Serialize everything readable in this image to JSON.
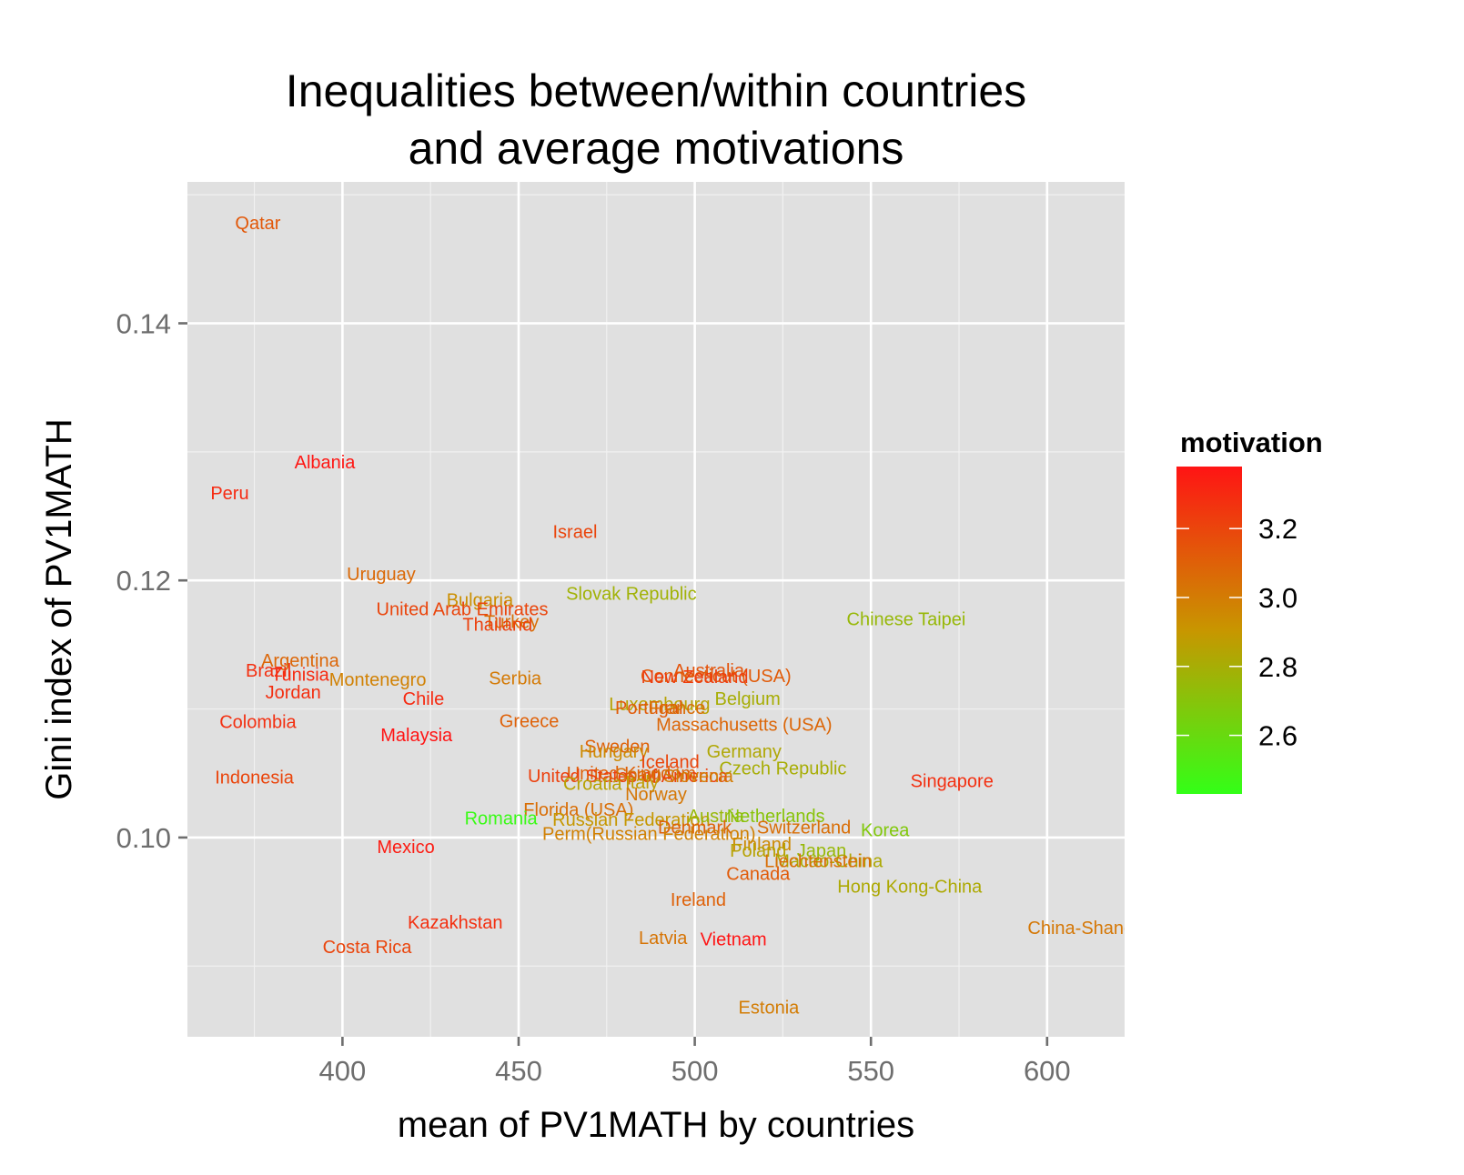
{
  "chart_data": {
    "type": "scatter",
    "title": [
      "Inequalities between/within countries",
      "and average motivations"
    ],
    "xlabel": "mean of PV1MATH by countries",
    "ylabel": "Gini index of PV1MATH",
    "xlim": [
      356,
      622
    ],
    "ylim": [
      0.0845,
      0.151
    ],
    "x_ticks": [
      400,
      450,
      500,
      550,
      600
    ],
    "x_tick_labels": [
      "400",
      "450",
      "500",
      "550",
      "600"
    ],
    "y_ticks": [
      0.1,
      0.12,
      0.14
    ],
    "y_tick_labels": [
      "0.10",
      "0.12",
      "0.14"
    ],
    "grid": true,
    "legend": {
      "title": "motivation",
      "placement": "right",
      "range": [
        2.43,
        3.38
      ],
      "ticks": [
        3.2,
        3.0,
        2.8,
        2.6
      ],
      "tick_labels": [
        "3.2",
        "3.0",
        "2.8",
        "2.6"
      ],
      "low_color": "#33ff17",
      "high_color": "#ff1414"
    },
    "points": [
      {
        "label": "Qatar",
        "x": 376,
        "y": 0.1478,
        "motivation": 3.13
      },
      {
        "label": "Albania",
        "x": 395,
        "y": 0.1292,
        "motivation": 3.37
      },
      {
        "label": "Peru",
        "x": 368,
        "y": 0.1268,
        "motivation": 3.3
      },
      {
        "label": "Israel",
        "x": 466,
        "y": 0.1238,
        "motivation": 3.2
      },
      {
        "label": "Uruguay",
        "x": 411,
        "y": 0.1205,
        "motivation": 3.07
      },
      {
        "label": "Slovak Republic",
        "x": 482,
        "y": 0.119,
        "motivation": 2.78
      },
      {
        "label": "Bulgaria",
        "x": 439,
        "y": 0.1185,
        "motivation": 2.93
      },
      {
        "label": "United Arab Emirates",
        "x": 434,
        "y": 0.1178,
        "motivation": 3.2
      },
      {
        "label": "Chinese Taipei",
        "x": 560,
        "y": 0.117,
        "motivation": 2.75
      },
      {
        "label": "Turkey",
        "x": 448,
        "y": 0.1168,
        "motivation": 3.05
      },
      {
        "label": "Thailand",
        "x": 444,
        "y": 0.1166,
        "motivation": 3.22
      },
      {
        "label": "Argentina",
        "x": 388,
        "y": 0.1138,
        "motivation": 3.08
      },
      {
        "label": "Brazil",
        "x": 379,
        "y": 0.113,
        "motivation": 3.28
      },
      {
        "label": "Tunisia",
        "x": 388,
        "y": 0.1127,
        "motivation": 3.3
      },
      {
        "label": "Montenegro",
        "x": 410,
        "y": 0.1123,
        "motivation": 2.98
      },
      {
        "label": "Serbia",
        "x": 449,
        "y": 0.1124,
        "motivation": 3.01
      },
      {
        "label": "Australia",
        "x": 504,
        "y": 0.113,
        "motivation": 3.15
      },
      {
        "label": "Connecticut (USA)",
        "x": 506,
        "y": 0.1126,
        "motivation": 3.12
      },
      {
        "label": "New Zealand",
        "x": 500,
        "y": 0.1125,
        "motivation": 3.23
      },
      {
        "label": "Jordan",
        "x": 386,
        "y": 0.1113,
        "motivation": 3.28
      },
      {
        "label": "Chile",
        "x": 423,
        "y": 0.1108,
        "motivation": 3.3
      },
      {
        "label": "Belgium",
        "x": 515,
        "y": 0.1108,
        "motivation": 2.8
      },
      {
        "label": "Luxembourg",
        "x": 490,
        "y": 0.1104,
        "motivation": 2.85
      },
      {
        "label": "Portugal",
        "x": 487,
        "y": 0.1101,
        "motivation": 3.12
      },
      {
        "label": "France",
        "x": 495,
        "y": 0.1101,
        "motivation": 3.05
      },
      {
        "label": "Colombia",
        "x": 376,
        "y": 0.109,
        "motivation": 3.28
      },
      {
        "label": "Greece",
        "x": 453,
        "y": 0.1091,
        "motivation": 3.1
      },
      {
        "label": "Massachusetts (USA)",
        "x": 514,
        "y": 0.1088,
        "motivation": 3.08
      },
      {
        "label": "Malaysia",
        "x": 421,
        "y": 0.108,
        "motivation": 3.38
      },
      {
        "label": "Sweden",
        "x": 478,
        "y": 0.1071,
        "motivation": 3.1
      },
      {
        "label": "Hungary",
        "x": 477,
        "y": 0.1067,
        "motivation": 2.95
      },
      {
        "label": "Germany",
        "x": 514,
        "y": 0.1067,
        "motivation": 2.83
      },
      {
        "label": "Iceland",
        "x": 493,
        "y": 0.1059,
        "motivation": 3.2
      },
      {
        "label": "Czech Republic",
        "x": 525,
        "y": 0.1054,
        "motivation": 2.8
      },
      {
        "label": "Indonesia",
        "x": 375,
        "y": 0.1047,
        "motivation": 3.2
      },
      {
        "label": "United Kingdom",
        "x": 482,
        "y": 0.105,
        "motivation": 3.1
      },
      {
        "label": "United States of America",
        "x": 481,
        "y": 0.1048,
        "motivation": 3.22
      },
      {
        "label": "Spain",
        "x": 484,
        "y": 0.1049,
        "motivation": 3.05
      },
      {
        "label": "Slovenia",
        "x": 501,
        "y": 0.1048,
        "motivation": 3.0
      },
      {
        "label": "Singapore",
        "x": 573,
        "y": 0.1044,
        "motivation": 3.28
      },
      {
        "label": "Croatia",
        "x": 471,
        "y": 0.1042,
        "motivation": 2.85
      },
      {
        "label": "Italy",
        "x": 485,
        "y": 0.1043,
        "motivation": 2.88
      },
      {
        "label": "Norway",
        "x": 489,
        "y": 0.1034,
        "motivation": 3.02
      },
      {
        "label": "Florida (USA)",
        "x": 467,
        "y": 0.1022,
        "motivation": 3.05
      },
      {
        "label": "Romania",
        "x": 445,
        "y": 0.1015,
        "motivation": 2.45
      },
      {
        "label": "Russian Federation",
        "x": 482,
        "y": 0.1014,
        "motivation": 2.9
      },
      {
        "label": "Austria",
        "x": 506,
        "y": 0.1017,
        "motivation": 2.75
      },
      {
        "label": "Netherlands",
        "x": 523,
        "y": 0.1017,
        "motivation": 2.7
      },
      {
        "label": "Denmark",
        "x": 500,
        "y": 0.1008,
        "motivation": 3.1
      },
      {
        "label": "Switzerland",
        "x": 531,
        "y": 0.1008,
        "motivation": 3.05
      },
      {
        "label": "Korea",
        "x": 554,
        "y": 0.1006,
        "motivation": 2.68
      },
      {
        "label": "Perm(Russian Federation)",
        "x": 487,
        "y": 0.1003,
        "motivation": 2.98
      },
      {
        "label": "Finland",
        "x": 519,
        "y": 0.0995,
        "motivation": 2.95
      },
      {
        "label": "Mexico",
        "x": 418,
        "y": 0.0993,
        "motivation": 3.35
      },
      {
        "label": "Poland",
        "x": 518,
        "y": 0.099,
        "motivation": 2.85
      },
      {
        "label": "Japan",
        "x": 536,
        "y": 0.099,
        "motivation": 2.75
      },
      {
        "label": "Macao-China",
        "x": 538,
        "y": 0.0982,
        "motivation": 2.82
      },
      {
        "label": "Liechtenstein",
        "x": 535,
        "y": 0.0982,
        "motivation": 3.05
      },
      {
        "label": "Canada",
        "x": 518,
        "y": 0.0972,
        "motivation": 3.12
      },
      {
        "label": "Hong Kong-China",
        "x": 561,
        "y": 0.0962,
        "motivation": 2.82
      },
      {
        "label": "Ireland",
        "x": 501,
        "y": 0.0952,
        "motivation": 3.1
      },
      {
        "label": "Kazakhstan",
        "x": 432,
        "y": 0.0934,
        "motivation": 3.28
      },
      {
        "label": "China-Shanghai",
        "x": 613,
        "y": 0.093,
        "motivation": 3.02
      },
      {
        "label": "Latvia",
        "x": 491,
        "y": 0.0922,
        "motivation": 3.03
      },
      {
        "label": "Vietnam",
        "x": 511,
        "y": 0.0921,
        "motivation": 3.38
      },
      {
        "label": "Costa Rica",
        "x": 407,
        "y": 0.0915,
        "motivation": 3.2
      },
      {
        "label": "Estonia",
        "x": 521,
        "y": 0.0868,
        "motivation": 3.0
      }
    ]
  }
}
